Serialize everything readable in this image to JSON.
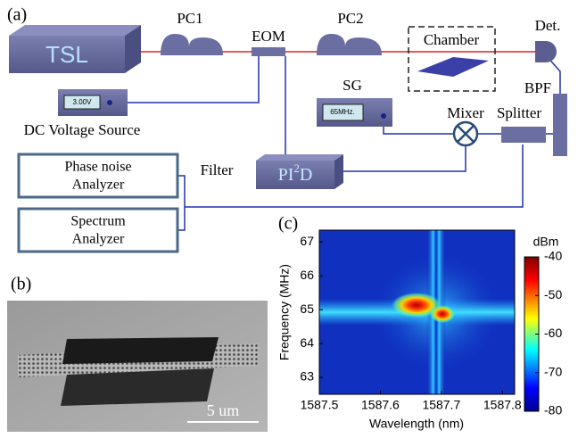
{
  "panels": {
    "a": "(a)",
    "b": "(b)",
    "c": "(c)"
  },
  "diagram": {
    "nodes": [
      {
        "label": "TSL"
      },
      {
        "label": "PC1"
      },
      {
        "label": "EOM"
      },
      {
        "label": "PC2"
      },
      {
        "label": "Chamber"
      },
      {
        "label": "Det."
      },
      {
        "label": "BPF"
      },
      {
        "label": "Splitter"
      },
      {
        "label": "Mixer"
      },
      {
        "label": "SG",
        "display": "65MHz."
      },
      {
        "label": "DC Voltage Source",
        "display": "3.00V"
      },
      {
        "label": "Filter"
      },
      {
        "label": "Phase noise",
        "label2": "Analyzer"
      },
      {
        "label": "Spectrum",
        "label2": "Analyzer"
      }
    ],
    "pid": {
      "pre": "PI",
      "sup": "2",
      "post": "D"
    }
  },
  "sem": {
    "scale_label": "5 um"
  },
  "chart_data": {
    "type": "heatmap",
    "xlabel": "Wavelength (nm)",
    "ylabel": "Frequency (MHz)",
    "xlim": [
      1587.5,
      1587.82
    ],
    "xticks": [
      1587.5,
      1587.6,
      1587.7,
      1587.8
    ],
    "ylim": [
      62.5,
      67.35
    ],
    "yticks": [
      63,
      64,
      65,
      66,
      67
    ],
    "colorbar": {
      "label": "dBm",
      "clim": [
        -80,
        -40
      ],
      "ticks": [
        -40,
        -50,
        -60,
        -70,
        -80
      ]
    }
  }
}
